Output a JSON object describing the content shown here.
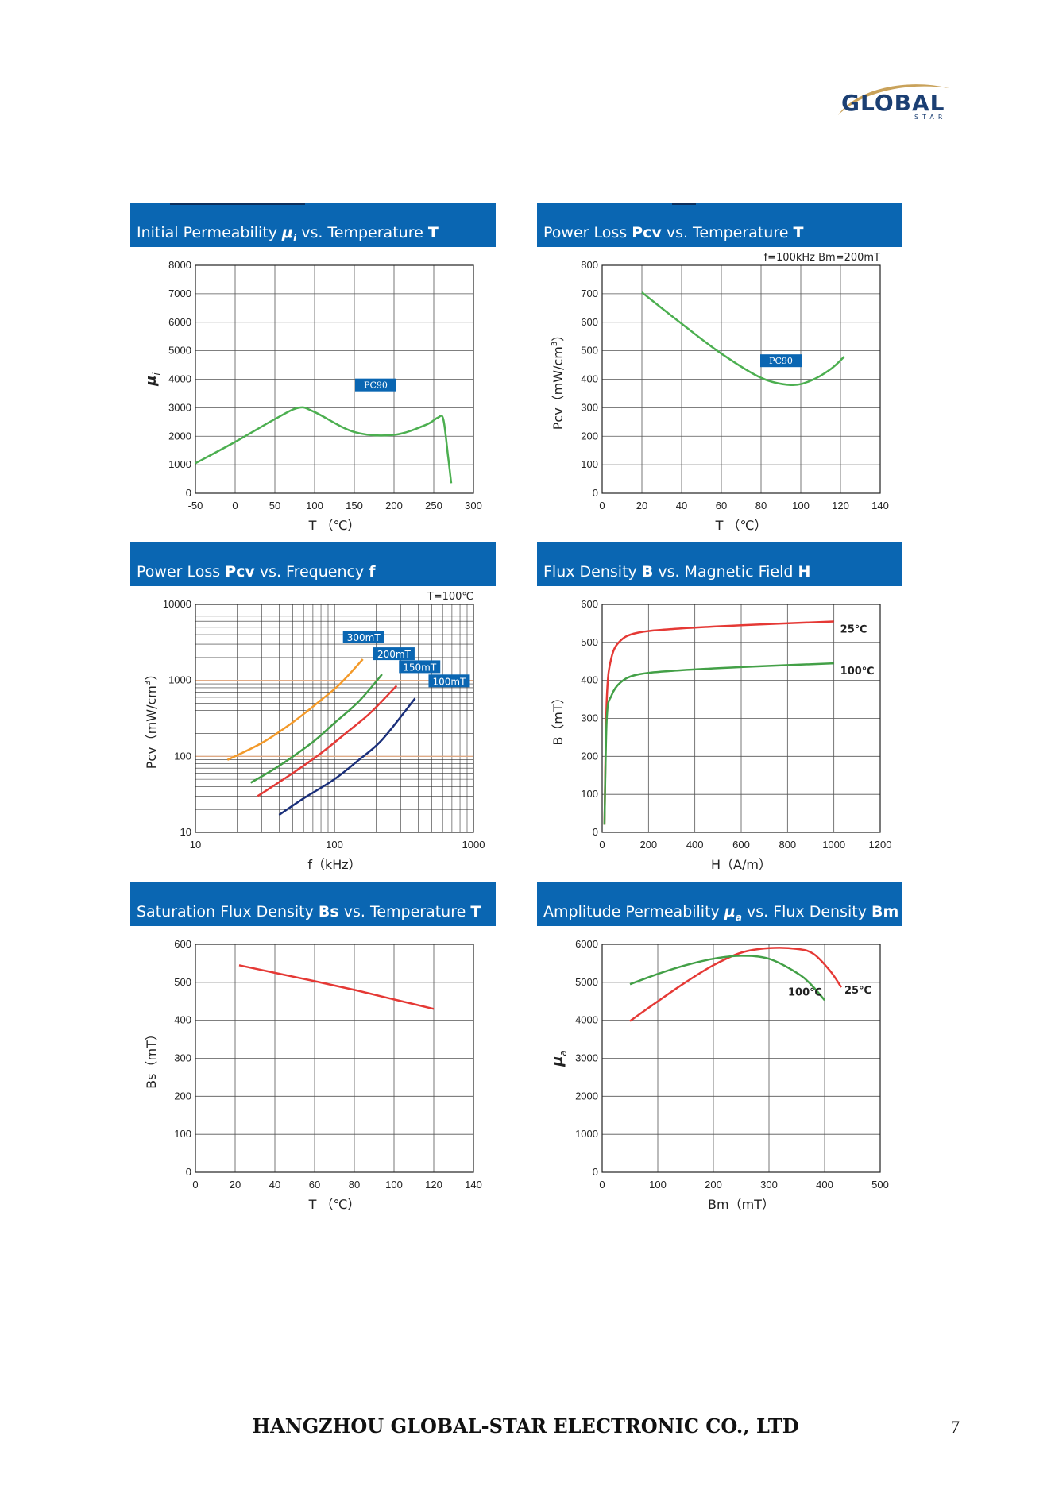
{
  "logo": {
    "main": "GLOBAL",
    "sub": "STAR"
  },
  "footer": {
    "company": "HANGZHOU GLOBAL-STAR ELECTRONIC CO., LTD",
    "page": "7"
  },
  "charts": [
    {
      "id": "mu-t",
      "title": {
        "pre": "Initial Permeability ",
        "sym": "μ",
        "sub": "i",
        "mid": " vs. Temperature ",
        "var": "T"
      },
      "chart_data": {
        "type": "line",
        "xlabel": "T （℃）",
        "ylabel": {
          "sym": "μ",
          "sub": "i"
        },
        "xlim": [
          -50,
          300
        ],
        "ylim": [
          0,
          8000
        ],
        "xticks": [
          -50,
          0,
          50,
          100,
          150,
          200,
          250,
          300
        ],
        "yticks": [
          0,
          1000,
          2000,
          3000,
          4000,
          5000,
          6000,
          7000,
          8000
        ],
        "grid": true,
        "tag": {
          "text": "PC90",
          "x": 177,
          "y": 3800
        },
        "note": "",
        "series": [
          {
            "color": "#4caf50",
            "x": [
              -50,
              0,
              50,
              80,
              100,
              150,
              200,
              240,
              255,
              262,
              268,
              272
            ],
            "y": [
              1050,
              1800,
              2600,
              3000,
              2850,
              2150,
              2050,
              2400,
              2650,
              2600,
              1300,
              350
            ]
          }
        ]
      }
    },
    {
      "id": "pcv-t",
      "title": {
        "pre": "Power Loss ",
        "sym": "Pcv",
        "sub": "",
        "mid": " vs. Temperature ",
        "var": "T"
      },
      "chart_data": {
        "type": "line",
        "xlabel": "T （℃）",
        "ylabel": {
          "text": "Pcv（mW/cm",
          "sup": "3",
          "close": "）"
        },
        "xlim": [
          0,
          140
        ],
        "ylim": [
          0,
          800
        ],
        "xticks": [
          0,
          20,
          40,
          60,
          80,
          100,
          120,
          140
        ],
        "yticks": [
          0,
          100,
          200,
          300,
          400,
          500,
          600,
          700,
          800
        ],
        "grid": true,
        "tag": {
          "text": "PC90",
          "x": 90,
          "y": 465
        },
        "note": "f=100kHz    Bm=200mT",
        "series": [
          {
            "color": "#4caf50",
            "x": [
              20,
              40,
              60,
              80,
              95,
              105,
              115,
              122
            ],
            "y": [
              705,
              595,
              490,
              405,
              380,
              395,
              435,
              480
            ]
          }
        ]
      }
    },
    {
      "id": "pcv-f",
      "title": {
        "pre": "Power Loss ",
        "sym": "Pcv",
        "sub": "",
        "mid": " vs. Frequency ",
        "var": "f"
      },
      "chart_data": {
        "type": "line",
        "xscale": "log",
        "yscale": "log",
        "xlabel": "f（kHz）",
        "ylabel": {
          "text": "Pcv（mW/cm",
          "sup": "3",
          "close": "）"
        },
        "xlim": [
          10,
          1000
        ],
        "ylim": [
          10,
          10000
        ],
        "xticks": [
          10,
          100,
          1000
        ],
        "yticks": [
          10,
          100,
          1000,
          10000
        ],
        "grid": true,
        "note": "T=100℃",
        "series": [
          {
            "name": "300mT",
            "color": "#f39a2a",
            "x": [
              17,
              30,
              50,
              80,
              110,
              160
            ],
            "y": [
              90,
              150,
              280,
              550,
              900,
              1900
            ]
          },
          {
            "name": "200mT",
            "color": "#43a047",
            "x": [
              25,
              40,
              70,
              100,
              150,
              220
            ],
            "y": [
              45,
              75,
              155,
              275,
              530,
              1200
            ]
          },
          {
            "name": "150mT",
            "color": "#e53935",
            "x": [
              28,
              50,
              80,
              120,
              180,
              280
            ],
            "y": [
              30,
              60,
              110,
              200,
              370,
              850
            ]
          },
          {
            "name": "100mT",
            "color": "#1a2f7a",
            "x": [
              40,
              60,
              100,
              150,
              220,
              380
            ],
            "y": [
              17,
              28,
              50,
              90,
              165,
              580
            ]
          }
        ]
      }
    },
    {
      "id": "b-h",
      "title": {
        "pre": "Flux Density ",
        "sym": "B",
        "sub": "",
        "mid": " vs. Magnetic Field ",
        "var": "H"
      },
      "chart_data": {
        "type": "line",
        "xlabel": "H（A/m）",
        "ylabel": {
          "text": "B（mT）"
        },
        "xlim": [
          0,
          1200
        ],
        "ylim": [
          0,
          600
        ],
        "xticks": [
          0,
          200,
          400,
          600,
          800,
          1000,
          1200
        ],
        "yticks": [
          0,
          100,
          200,
          300,
          400,
          500,
          600
        ],
        "grid": true,
        "note": "",
        "series": [
          {
            "name": "25℃",
            "color": "#e53935",
            "x": [
              10,
              20,
              40,
              80,
              150,
              300,
              600,
              1000
            ],
            "y": [
              20,
              350,
              460,
              505,
              525,
              535,
              545,
              555
            ]
          },
          {
            "name": "100℃",
            "color": "#43a047",
            "x": [
              10,
              20,
              40,
              80,
              150,
              300,
              600,
              1000
            ],
            "y": [
              20,
              300,
              360,
              395,
              415,
              425,
              435,
              445
            ]
          }
        ]
      }
    },
    {
      "id": "bs-t",
      "title": {
        "pre": "Saturation Flux Density ",
        "sym": "Bs",
        "sub": "",
        "mid": " vs. Temperature ",
        "var": "T"
      },
      "chart_data": {
        "type": "line",
        "xlabel": "T （℃）",
        "ylabel": {
          "text": "Bs（mT）"
        },
        "xlim": [
          0,
          140
        ],
        "ylim": [
          0,
          600
        ],
        "xticks": [
          0,
          20,
          40,
          60,
          80,
          100,
          120,
          140
        ],
        "yticks": [
          0,
          100,
          200,
          300,
          400,
          500,
          600
        ],
        "grid": true,
        "note": "",
        "series": [
          {
            "color": "#e53935",
            "x": [
              22,
              40,
              60,
              80,
              100,
              120
            ],
            "y": [
              545,
              525,
              503,
              480,
              455,
              430
            ]
          }
        ]
      }
    },
    {
      "id": "mua-bm",
      "title": {
        "pre": "Amplitude Permeability ",
        "sym": "μ",
        "sub": "a",
        "mid": " vs. Flux Density ",
        "var": "Bm"
      },
      "chart_data": {
        "type": "line",
        "xlabel": "Bm（mT）",
        "ylabel": {
          "sym": "μ",
          "sub": "a"
        },
        "xlim": [
          0,
          500
        ],
        "ylim": [
          0,
          6000
        ],
        "xticks": [
          0,
          100,
          200,
          300,
          400,
          500
        ],
        "yticks": [
          0,
          1000,
          2000,
          3000,
          4000,
          5000,
          6000
        ],
        "grid": true,
        "note": "",
        "series": [
          {
            "name": "25℃",
            "color": "#e53935",
            "x": [
              50,
              100,
              150,
              200,
              250,
              300,
              350,
              380,
              410,
              430
            ],
            "y": [
              3980,
              4500,
              5000,
              5450,
              5780,
              5900,
              5880,
              5750,
              5300,
              4870
            ]
          },
          {
            "name": "100℃",
            "color": "#43a047",
            "x": [
              50,
              100,
              150,
              200,
              250,
              300,
              350,
              375,
              400
            ],
            "y": [
              4950,
              5220,
              5450,
              5620,
              5700,
              5620,
              5250,
              4950,
              4530
            ]
          }
        ]
      }
    }
  ]
}
